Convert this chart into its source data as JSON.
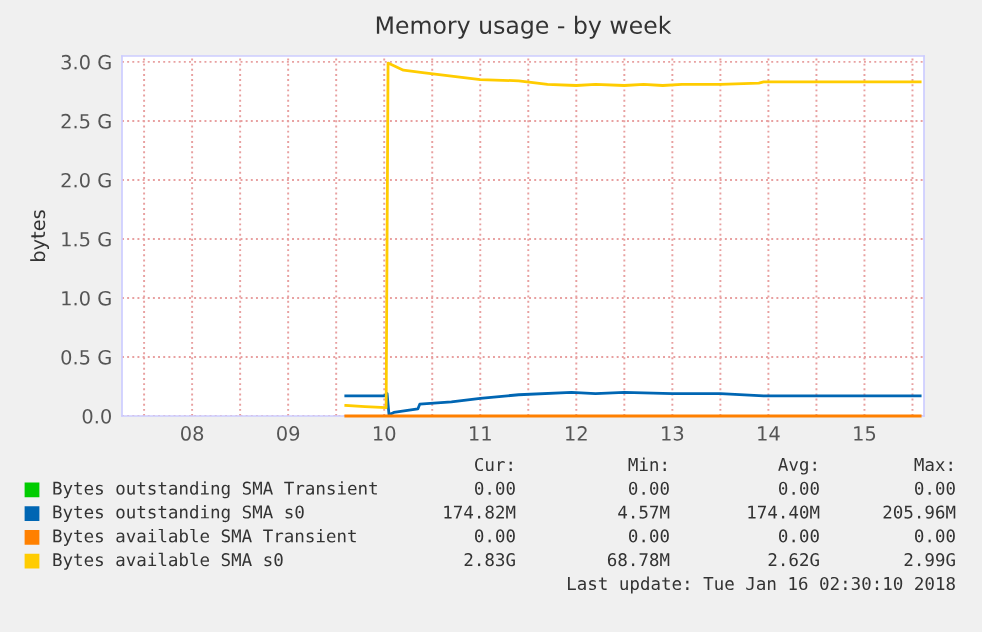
{
  "chart_data": {
    "type": "line",
    "title": "Memory usage - by week",
    "ylabel": "bytes",
    "xlim": [
      7.77,
      16.12
    ],
    "ylim": [
      0,
      3.05
    ],
    "xticks": [
      {
        "value": 8,
        "label": null
      },
      {
        "value": 8.5,
        "label": "08"
      },
      {
        "value": 9,
        "label": null
      },
      {
        "value": 9.5,
        "label": "09"
      },
      {
        "value": 10,
        "label": null
      },
      {
        "value": 10.5,
        "label": "10"
      },
      {
        "value": 11,
        "label": null
      },
      {
        "value": 11.5,
        "label": "11"
      },
      {
        "value": 12,
        "label": null
      },
      {
        "value": 12.5,
        "label": "12"
      },
      {
        "value": 13,
        "label": null
      },
      {
        "value": 13.5,
        "label": "13"
      },
      {
        "value": 14,
        "label": null
      },
      {
        "value": 14.5,
        "label": "14"
      },
      {
        "value": 15,
        "label": null
      },
      {
        "value": 15.5,
        "label": "15"
      },
      {
        "value": 16,
        "label": null
      }
    ],
    "yticks": [
      {
        "value": 0,
        "label": "0.0"
      },
      {
        "value": 0.5,
        "label": "0.5 G"
      },
      {
        "value": 1,
        "label": "1.0 G"
      },
      {
        "value": 1.5,
        "label": "1.5 G"
      },
      {
        "value": 2,
        "label": "2.0 G"
      },
      {
        "value": 2.5,
        "label": "2.5 G"
      },
      {
        "value": 3,
        "label": "3.0 G"
      }
    ],
    "grid": true,
    "legend": "bottom",
    "series": [
      {
        "name": "Bytes outstanding SMA Transient",
        "color": "#00cc00",
        "values": [
          null,
          null
        ]
      },
      {
        "name": "Bytes outstanding SMA s0",
        "color": "#0066b3",
        "x": [
          10.1,
          10.5,
          10.53,
          10.55,
          10.6,
          10.85,
          10.87,
          11.2,
          11.5,
          11.9,
          12.45,
          12.7,
          13.0,
          13.5,
          14.0,
          14.45,
          16.08
        ],
        "values": [
          0.17,
          0.17,
          0.19,
          0.01,
          0.03,
          0.06,
          0.1,
          0.12,
          0.15,
          0.18,
          0.2,
          0.19,
          0.2,
          0.19,
          0.19,
          0.17,
          0.17
        ]
      },
      {
        "name": "Bytes available SMA Transient",
        "color": "#ff8000",
        "x": [
          10.1,
          16.08
        ],
        "values": [
          0,
          0
        ]
      },
      {
        "name": "Bytes available SMA s0",
        "color": "#ffcc00",
        "x": [
          10.1,
          10.3,
          10.52,
          10.54,
          10.7,
          10.9,
          11.2,
          11.5,
          11.9,
          12.2,
          12.5,
          12.7,
          13.0,
          13.2,
          13.4,
          13.6,
          14.0,
          14.4,
          14.45,
          16.08
        ],
        "values": [
          0.09,
          0.08,
          0.07,
          2.99,
          2.93,
          2.91,
          2.88,
          2.85,
          2.84,
          2.81,
          2.8,
          2.81,
          2.8,
          2.81,
          2.8,
          2.81,
          2.81,
          2.82,
          2.83,
          2.83
        ]
      }
    ],
    "annotations": [
      "Cur:",
      "Min:",
      "Avg:",
      "Max:",
      "0.00",
      "0.00",
      "0.00",
      "0.00",
      "174.82M",
      "4.57M",
      "174.40M",
      "205.96M",
      "0.00",
      "0.00",
      "0.00",
      "0.00",
      "2.83G",
      "68.78M",
      "2.62G",
      "2.99G",
      "Last update: Tue Jan 16 02:30:10 2018"
    ]
  }
}
